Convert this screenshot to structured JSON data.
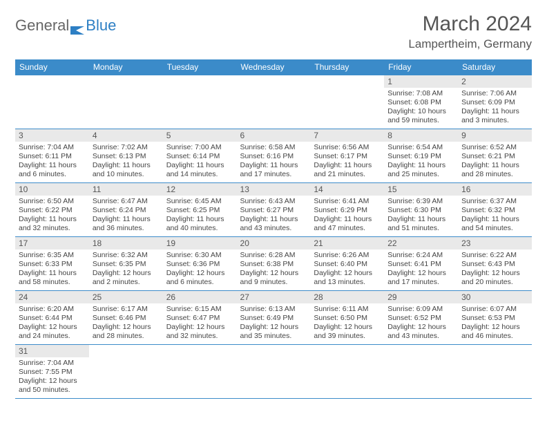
{
  "logo": {
    "text1": "General",
    "text2": "Blue"
  },
  "title": "March 2024",
  "location": "Lampertheim, Germany",
  "header_bg": "#3b8bc9",
  "weekdays": [
    "Sunday",
    "Monday",
    "Tuesday",
    "Wednesday",
    "Thursday",
    "Friday",
    "Saturday"
  ],
  "weeks": [
    [
      {
        "day": "",
        "lines": [
          "",
          "",
          ""
        ]
      },
      {
        "day": "",
        "lines": [
          "",
          "",
          ""
        ]
      },
      {
        "day": "",
        "lines": [
          "",
          "",
          ""
        ]
      },
      {
        "day": "",
        "lines": [
          "",
          "",
          ""
        ]
      },
      {
        "day": "",
        "lines": [
          "",
          "",
          ""
        ]
      },
      {
        "day": "1",
        "lines": [
          "Sunrise: 7:08 AM",
          "Sunset: 6:08 PM",
          "Daylight: 10 hours and 59 minutes."
        ]
      },
      {
        "day": "2",
        "lines": [
          "Sunrise: 7:06 AM",
          "Sunset: 6:09 PM",
          "Daylight: 11 hours and 3 minutes."
        ]
      }
    ],
    [
      {
        "day": "3",
        "lines": [
          "Sunrise: 7:04 AM",
          "Sunset: 6:11 PM",
          "Daylight: 11 hours and 6 minutes."
        ]
      },
      {
        "day": "4",
        "lines": [
          "Sunrise: 7:02 AM",
          "Sunset: 6:13 PM",
          "Daylight: 11 hours and 10 minutes."
        ]
      },
      {
        "day": "5",
        "lines": [
          "Sunrise: 7:00 AM",
          "Sunset: 6:14 PM",
          "Daylight: 11 hours and 14 minutes."
        ]
      },
      {
        "day": "6",
        "lines": [
          "Sunrise: 6:58 AM",
          "Sunset: 6:16 PM",
          "Daylight: 11 hours and 17 minutes."
        ]
      },
      {
        "day": "7",
        "lines": [
          "Sunrise: 6:56 AM",
          "Sunset: 6:17 PM",
          "Daylight: 11 hours and 21 minutes."
        ]
      },
      {
        "day": "8",
        "lines": [
          "Sunrise: 6:54 AM",
          "Sunset: 6:19 PM",
          "Daylight: 11 hours and 25 minutes."
        ]
      },
      {
        "day": "9",
        "lines": [
          "Sunrise: 6:52 AM",
          "Sunset: 6:21 PM",
          "Daylight: 11 hours and 28 minutes."
        ]
      }
    ],
    [
      {
        "day": "10",
        "lines": [
          "Sunrise: 6:50 AM",
          "Sunset: 6:22 PM",
          "Daylight: 11 hours and 32 minutes."
        ]
      },
      {
        "day": "11",
        "lines": [
          "Sunrise: 6:47 AM",
          "Sunset: 6:24 PM",
          "Daylight: 11 hours and 36 minutes."
        ]
      },
      {
        "day": "12",
        "lines": [
          "Sunrise: 6:45 AM",
          "Sunset: 6:25 PM",
          "Daylight: 11 hours and 40 minutes."
        ]
      },
      {
        "day": "13",
        "lines": [
          "Sunrise: 6:43 AM",
          "Sunset: 6:27 PM",
          "Daylight: 11 hours and 43 minutes."
        ]
      },
      {
        "day": "14",
        "lines": [
          "Sunrise: 6:41 AM",
          "Sunset: 6:29 PM",
          "Daylight: 11 hours and 47 minutes."
        ]
      },
      {
        "day": "15",
        "lines": [
          "Sunrise: 6:39 AM",
          "Sunset: 6:30 PM",
          "Daylight: 11 hours and 51 minutes."
        ]
      },
      {
        "day": "16",
        "lines": [
          "Sunrise: 6:37 AM",
          "Sunset: 6:32 PM",
          "Daylight: 11 hours and 54 minutes."
        ]
      }
    ],
    [
      {
        "day": "17",
        "lines": [
          "Sunrise: 6:35 AM",
          "Sunset: 6:33 PM",
          "Daylight: 11 hours and 58 minutes."
        ]
      },
      {
        "day": "18",
        "lines": [
          "Sunrise: 6:32 AM",
          "Sunset: 6:35 PM",
          "Daylight: 12 hours and 2 minutes."
        ]
      },
      {
        "day": "19",
        "lines": [
          "Sunrise: 6:30 AM",
          "Sunset: 6:36 PM",
          "Daylight: 12 hours and 6 minutes."
        ]
      },
      {
        "day": "20",
        "lines": [
          "Sunrise: 6:28 AM",
          "Sunset: 6:38 PM",
          "Daylight: 12 hours and 9 minutes."
        ]
      },
      {
        "day": "21",
        "lines": [
          "Sunrise: 6:26 AM",
          "Sunset: 6:40 PM",
          "Daylight: 12 hours and 13 minutes."
        ]
      },
      {
        "day": "22",
        "lines": [
          "Sunrise: 6:24 AM",
          "Sunset: 6:41 PM",
          "Daylight: 12 hours and 17 minutes."
        ]
      },
      {
        "day": "23",
        "lines": [
          "Sunrise: 6:22 AM",
          "Sunset: 6:43 PM",
          "Daylight: 12 hours and 20 minutes."
        ]
      }
    ],
    [
      {
        "day": "24",
        "lines": [
          "Sunrise: 6:20 AM",
          "Sunset: 6:44 PM",
          "Daylight: 12 hours and 24 minutes."
        ]
      },
      {
        "day": "25",
        "lines": [
          "Sunrise: 6:17 AM",
          "Sunset: 6:46 PM",
          "Daylight: 12 hours and 28 minutes."
        ]
      },
      {
        "day": "26",
        "lines": [
          "Sunrise: 6:15 AM",
          "Sunset: 6:47 PM",
          "Daylight: 12 hours and 32 minutes."
        ]
      },
      {
        "day": "27",
        "lines": [
          "Sunrise: 6:13 AM",
          "Sunset: 6:49 PM",
          "Daylight: 12 hours and 35 minutes."
        ]
      },
      {
        "day": "28",
        "lines": [
          "Sunrise: 6:11 AM",
          "Sunset: 6:50 PM",
          "Daylight: 12 hours and 39 minutes."
        ]
      },
      {
        "day": "29",
        "lines": [
          "Sunrise: 6:09 AM",
          "Sunset: 6:52 PM",
          "Daylight: 12 hours and 43 minutes."
        ]
      },
      {
        "day": "30",
        "lines": [
          "Sunrise: 6:07 AM",
          "Sunset: 6:53 PM",
          "Daylight: 12 hours and 46 minutes."
        ]
      }
    ],
    [
      {
        "day": "31",
        "lines": [
          "Sunrise: 7:04 AM",
          "Sunset: 7:55 PM",
          "Daylight: 12 hours and 50 minutes."
        ]
      },
      {
        "day": "",
        "lines": [
          "",
          "",
          ""
        ]
      },
      {
        "day": "",
        "lines": [
          "",
          "",
          ""
        ]
      },
      {
        "day": "",
        "lines": [
          "",
          "",
          ""
        ]
      },
      {
        "day": "",
        "lines": [
          "",
          "",
          ""
        ]
      },
      {
        "day": "",
        "lines": [
          "",
          "",
          ""
        ]
      },
      {
        "day": "",
        "lines": [
          "",
          "",
          ""
        ]
      }
    ]
  ]
}
